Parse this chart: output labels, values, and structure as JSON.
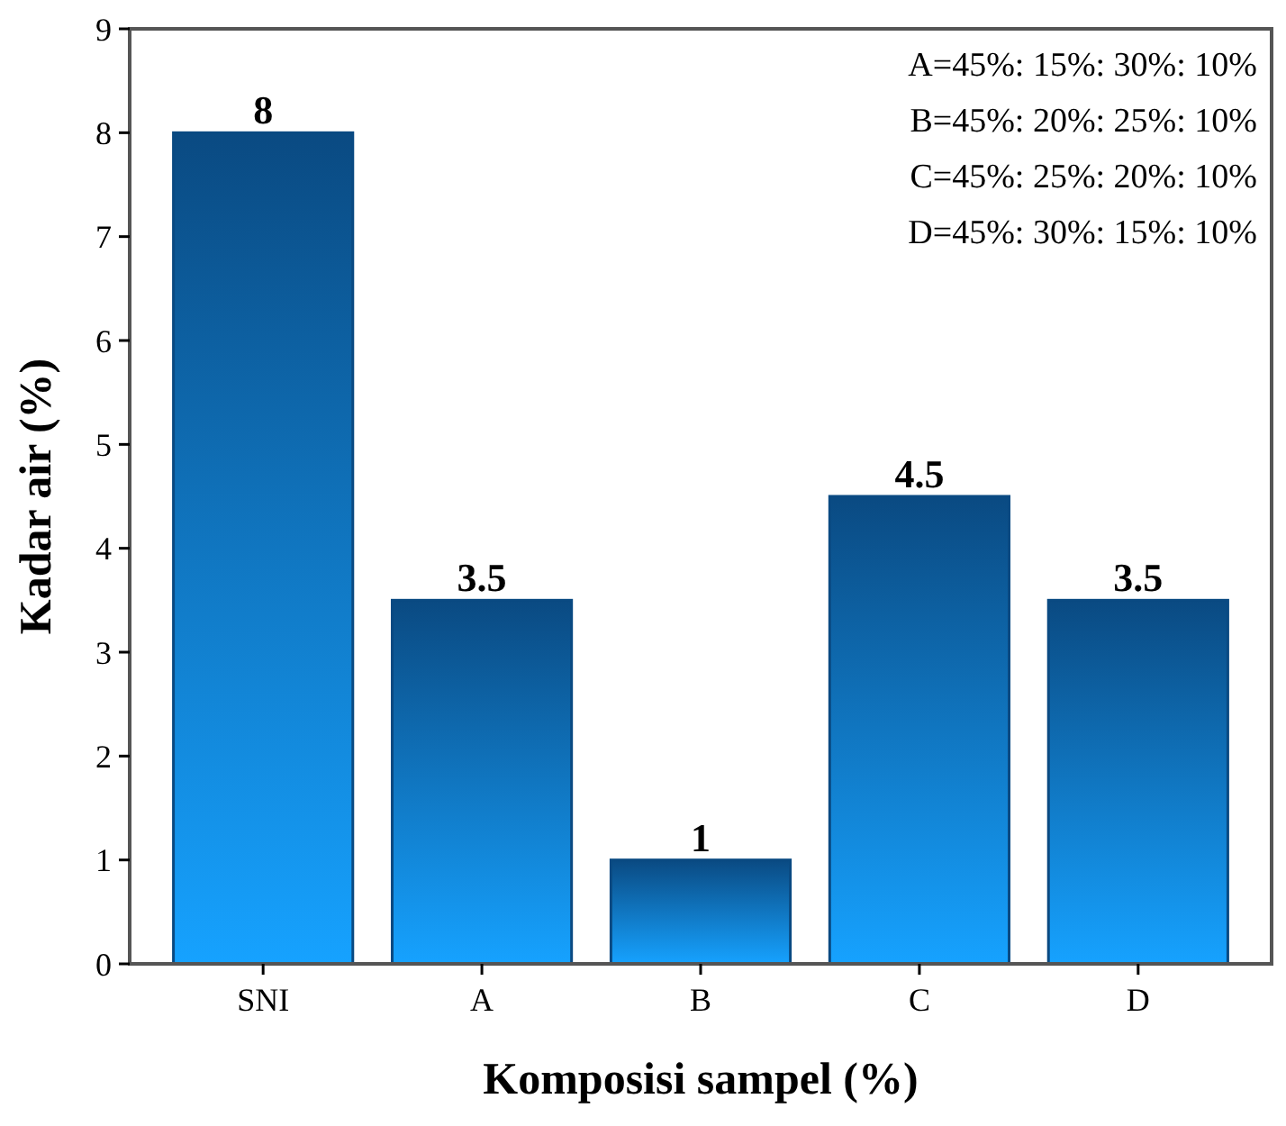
{
  "chart_data": {
    "type": "bar",
    "xlabel": "Komposisi sampel (%)",
    "ylabel": "Kadar air (%)",
    "categories": [
      "SNI",
      "A",
      "B",
      "C",
      "D"
    ],
    "series": [
      {
        "color": "#0a4a82",
        "values": [
          8,
          3.5,
          1,
          4.5,
          3.5
        ]
      }
    ],
    "ylim": [
      0,
      9
    ],
    "yticks": [
      0,
      1,
      2,
      3,
      4,
      5,
      6,
      7,
      8,
      9
    ],
    "data_labels": true,
    "grid": false,
    "annotations": [
      "A=45%: 15%: 30%: 10%",
      "B=45%: 20%: 25%: 10%",
      "C=45%: 25%: 20%: 10%",
      "D=45%: 30%: 15%: 10%"
    ]
  }
}
